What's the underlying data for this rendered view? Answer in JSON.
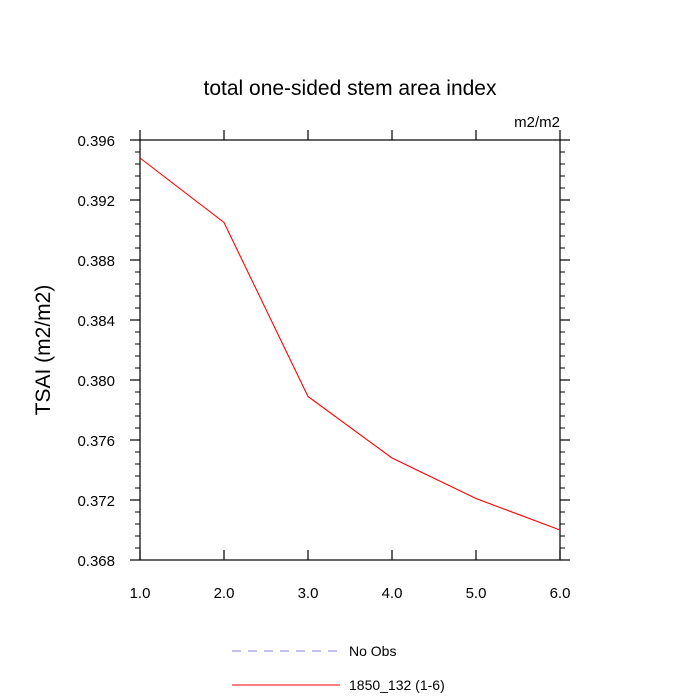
{
  "chart_data": {
    "type": "line",
    "title": "total one-sided stem area index",
    "units": "m2/m2",
    "ylabel": "TSAI  (m2/m2)",
    "xlabel": "",
    "xlim": [
      1.0,
      6.0
    ],
    "ylim": [
      0.368,
      0.396
    ],
    "x_ticks": [
      "1.0",
      "2.0",
      "3.0",
      "4.0",
      "5.0",
      "6.0"
    ],
    "y_ticks": [
      "0.368",
      "0.372",
      "0.376",
      "0.380",
      "0.384",
      "0.388",
      "0.392",
      "0.396"
    ],
    "series": [
      {
        "name": "1850_132 (1-6)",
        "color": "#ff0000",
        "style": "solid",
        "x": [
          1.0,
          2.0,
          3.0,
          4.0,
          5.0,
          6.0
        ],
        "y": [
          0.3948,
          0.3905,
          0.3789,
          0.3748,
          0.3721,
          0.37
        ]
      },
      {
        "name": "No Obs",
        "color": "#8080e0",
        "style": "dashed",
        "x": [],
        "y": []
      }
    ],
    "legend_position": "bottom",
    "grid": false
  }
}
